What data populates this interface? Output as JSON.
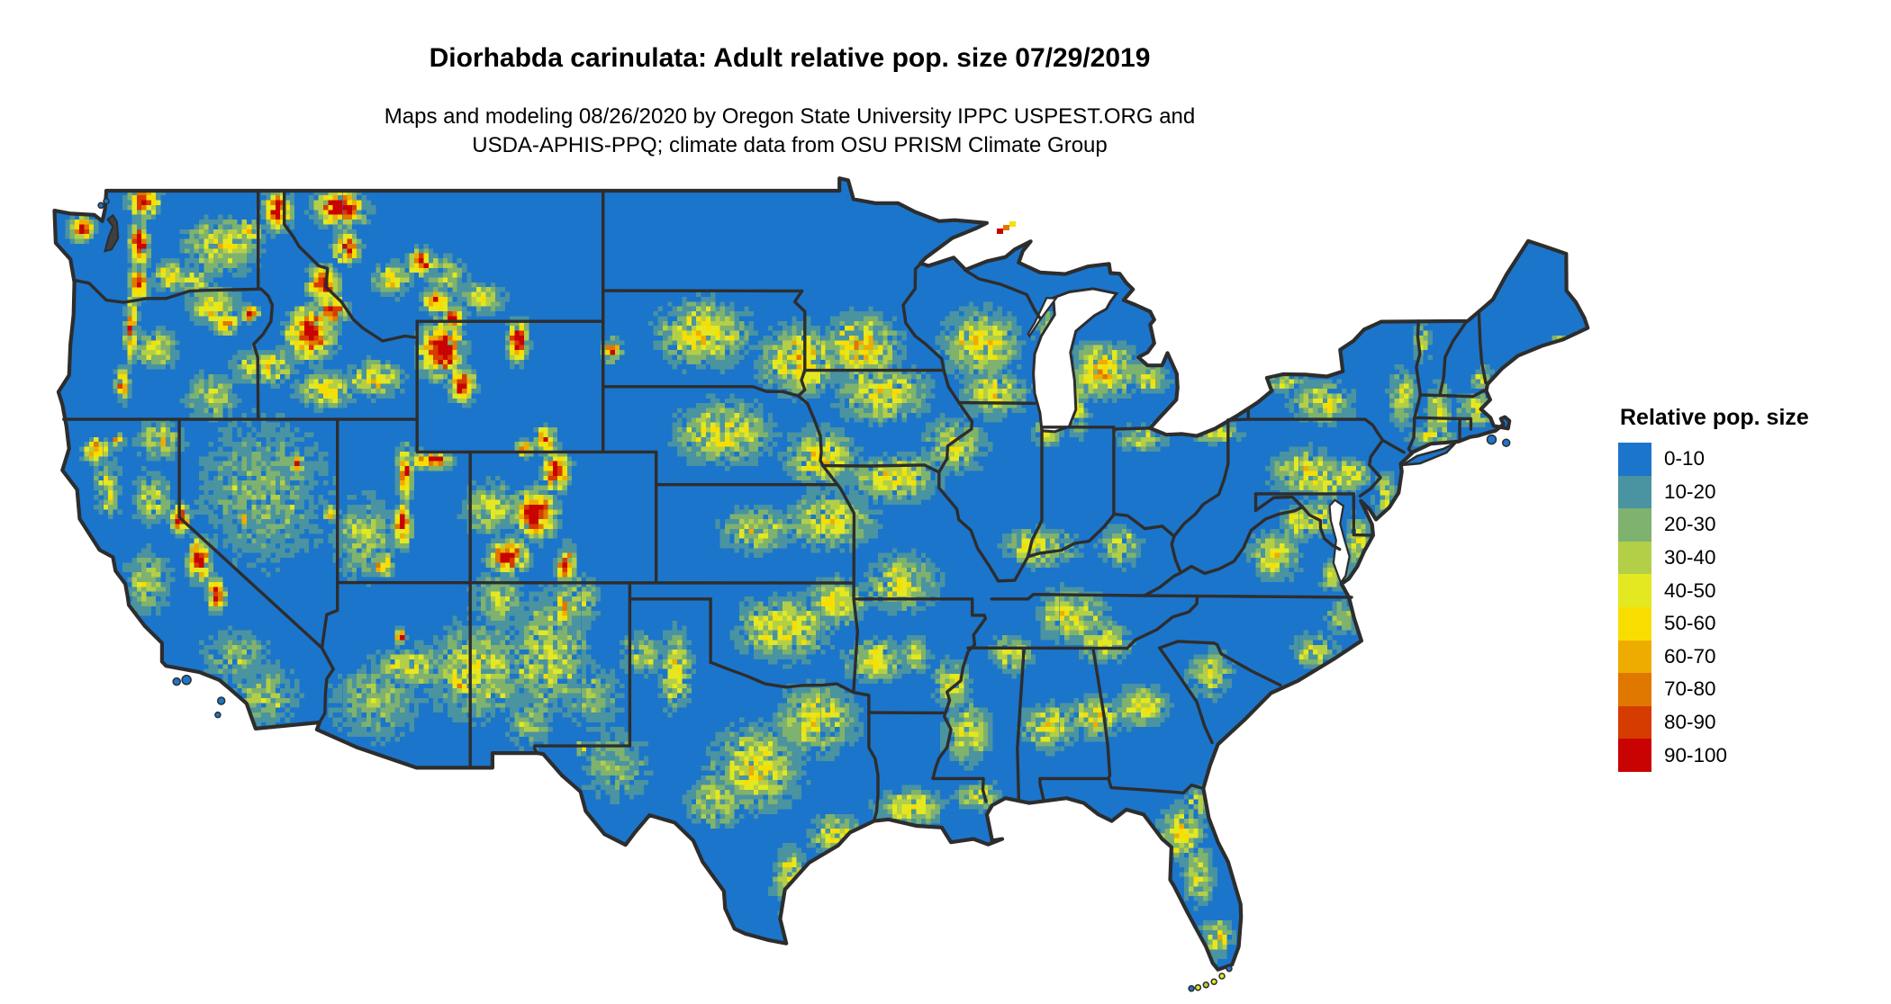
{
  "header": {
    "title": "Diorhabda carinulata: Adult relative pop. size 07/29/2019",
    "subtitle_line1": "Maps and modeling 08/26/2020 by Oregon State University IPPC USPEST.ORG and",
    "subtitle_line2": "USDA-APHIS-PPQ; climate data from OSU PRISM Climate Group"
  },
  "legend": {
    "title": "Relative pop. size",
    "items": [
      {
        "label": "0-10",
        "color": "#1b75cb"
      },
      {
        "label": "10-20",
        "color": "#4a93a1"
      },
      {
        "label": "20-30",
        "color": "#7eb26e"
      },
      {
        "label": "30-40",
        "color": "#b3cf48"
      },
      {
        "label": "40-50",
        "color": "#e4e821"
      },
      {
        "label": "50-60",
        "color": "#f8de00"
      },
      {
        "label": "60-70",
        "color": "#efac00"
      },
      {
        "label": "70-80",
        "color": "#e07800"
      },
      {
        "label": "80-90",
        "color": "#d63b00"
      },
      {
        "label": "90-100",
        "color": "#c90202"
      }
    ]
  },
  "map": {
    "type": "choropleth-raster",
    "region": "Contiguous United States with state boundaries",
    "projection": "equirectangular lon/lat",
    "base_color": "#1b75cb",
    "boundary_color": "#2d2d2d",
    "water_color": "#ffffff",
    "summary": "Low relative population (blue) over most of the country; moderate (green to yellow) bands across the central plains, upper Midwest, Gulf and Atlantic coastal plains and interior valleys; high (orange to red) in western mountain ranges: Cascades, Olympics, northern Rockies, Yellowstone area, Sierra Nevada, Wasatch and Colorado Rockies."
  }
}
